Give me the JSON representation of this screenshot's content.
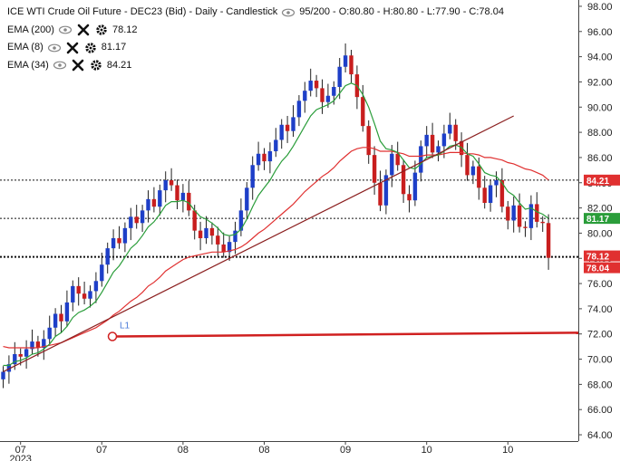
{
  "header": {
    "title": "ICE WTI Crude Oil Future - DEC23 (Bid) - Daily - Candlestick",
    "ohlc": "95/200 - O:80.80 - H:80.80 - L:77.90 - C:78.04"
  },
  "indicators": [
    {
      "label": "EMA (200)",
      "value": "78.12",
      "color": "#111111"
    },
    {
      "label": "EMA (8)",
      "value": "81.17",
      "color": "#2a9d3a"
    },
    {
      "label": "EMA (34)",
      "value": "84.21",
      "color": "#e03030"
    }
  ],
  "price_tags": [
    {
      "value": "84.21",
      "price": 84.21,
      "color": "#e03030"
    },
    {
      "value": "81.17",
      "price": 81.17,
      "color": "#2a9d3a"
    },
    {
      "value": "78.12",
      "price": 78.12,
      "color": "#e03030"
    },
    {
      "value": "78.04",
      "price": 78.04,
      "color": "#e03030"
    }
  ],
  "drawing": {
    "label": "L1",
    "start_price": 71.8,
    "end_price": 72.1,
    "color": "#d02020"
  },
  "chart_data": {
    "type": "candlestick",
    "ylim": [
      63.5,
      98.5
    ],
    "y_ticks": [
      "98.00",
      "96.00",
      "94.00",
      "92.00",
      "90.00",
      "88.00",
      "86.00",
      "84.00",
      "82.00",
      "80.00",
      "78.00",
      "76.00",
      "74.00",
      "72.00",
      "70.00",
      "68.00",
      "66.00",
      "64.00"
    ],
    "x_ticks": [
      {
        "label": "07",
        "sub": "2023",
        "index": 3
      },
      {
        "label": "07",
        "sub": "",
        "index": 17
      },
      {
        "label": "08",
        "sub": "",
        "index": 31
      },
      {
        "label": "08",
        "sub": "",
        "index": 45
      },
      {
        "label": "09",
        "sub": "",
        "index": 59
      },
      {
        "label": "10",
        "sub": "",
        "index": 73
      },
      {
        "label": "10",
        "sub": "",
        "index": 87
      }
    ],
    "bars_count": 95,
    "close": [
      69.0,
      69.6,
      70.4,
      70.2,
      70.8,
      71.4,
      70.9,
      71.6,
      72.5,
      73.6,
      73.0,
      74.5,
      75.8,
      75.2,
      74.8,
      75.4,
      76.2,
      77.5,
      78.8,
      79.6,
      79.2,
      80.4,
      81.3,
      80.8,
      81.8,
      82.7,
      82.1,
      83.4,
      84.2,
      83.8,
      82.6,
      83.2,
      81.8,
      80.2,
      79.6,
      80.4,
      79.8,
      79.1,
      78.5,
      79.3,
      80.2,
      81.8,
      83.6,
      85.4,
      86.3,
      85.7,
      86.5,
      87.4,
      88.6,
      88.1,
      89.2,
      90.5,
      91.3,
      92.1,
      91.5,
      90.4,
      90.9,
      91.6,
      93.2,
      94.1,
      92.6,
      90.8,
      88.5,
      86.2,
      84.0,
      82.2,
      84.6,
      86.3,
      85.4,
      83.1,
      82.6,
      84.8,
      86.9,
      87.8,
      86.4,
      86.9,
      87.9,
      88.6,
      87.3,
      86.2,
      84.6,
      85.3,
      83.6,
      82.4,
      83.8,
      84.2,
      82.1,
      81.0,
      82.2,
      80.5,
      80.4,
      82.3,
      80.9,
      80.8,
      78.04
    ],
    "ema8": [
      69.5,
      69.5,
      69.8,
      69.9,
      70.1,
      70.4,
      70.5,
      70.8,
      71.2,
      71.8,
      72.1,
      72.6,
      73.3,
      73.7,
      73.9,
      74.2,
      74.6,
      75.3,
      76.1,
      76.9,
      77.4,
      78.1,
      78.8,
      79.2,
      79.8,
      80.5,
      80.9,
      81.5,
      82.2,
      82.5,
      82.5,
      82.6,
      82.4,
      81.8,
      81.3,
      81.1,
      80.8,
      80.4,
      79.9,
      79.8,
      79.9,
      80.3,
      81.1,
      82.1,
      83.0,
      83.6,
      84.2,
      85.0,
      85.7,
      86.2,
      86.9,
      87.7,
      88.5,
      89.3,
      89.8,
      90.0,
      90.2,
      90.5,
      91.1,
      91.7,
      91.9,
      91.7,
      91.0,
      90.0,
      88.7,
      87.3,
      86.7,
      86.6,
      86.4,
      85.8,
      85.2,
      85.1,
      85.5,
      86.0,
      86.1,
      86.2,
      86.5,
      86.9,
      87.0,
      86.8,
      86.3,
      86.1,
      85.5,
      84.8,
      84.6,
      84.5,
      84.0,
      83.3,
      83.0,
      82.4,
      81.9,
      82.0,
      81.7,
      81.5,
      81.17
    ],
    "ema34": [
      71.0,
      70.9,
      70.9,
      70.9,
      70.9,
      70.9,
      70.9,
      71.0,
      71.1,
      71.2,
      71.3,
      71.5,
      71.7,
      71.9,
      72.1,
      72.3,
      72.5,
      72.8,
      73.1,
      73.5,
      73.8,
      74.2,
      74.6,
      74.9,
      75.3,
      75.8,
      76.1,
      76.5,
      77.0,
      77.3,
      77.6,
      77.9,
      78.1,
      78.2,
      78.3,
      78.4,
      78.5,
      78.5,
      78.5,
      78.6,
      78.7,
      78.9,
      79.2,
      79.6,
      80.0,
      80.3,
      80.7,
      81.1,
      81.5,
      81.9,
      82.3,
      82.8,
      83.3,
      83.7,
      84.1,
      84.5,
      84.8,
      85.2,
      85.7,
      86.1,
      86.5,
      86.7,
      86.8,
      86.8,
      86.7,
      86.5,
      86.5,
      86.5,
      86.4,
      86.3,
      86.1,
      86.1,
      86.1,
      86.2,
      86.2,
      86.2,
      86.3,
      86.4,
      86.4,
      86.4,
      86.3,
      86.3,
      86.2,
      86.0,
      86.0,
      85.9,
      85.8,
      85.6,
      85.5,
      85.3,
      85.1,
      85.0,
      84.8,
      84.6,
      84.21
    ],
    "trendline": {
      "start_index": 0,
      "start_price": 69.0,
      "end_index": 88,
      "end_price": 89.3
    }
  }
}
